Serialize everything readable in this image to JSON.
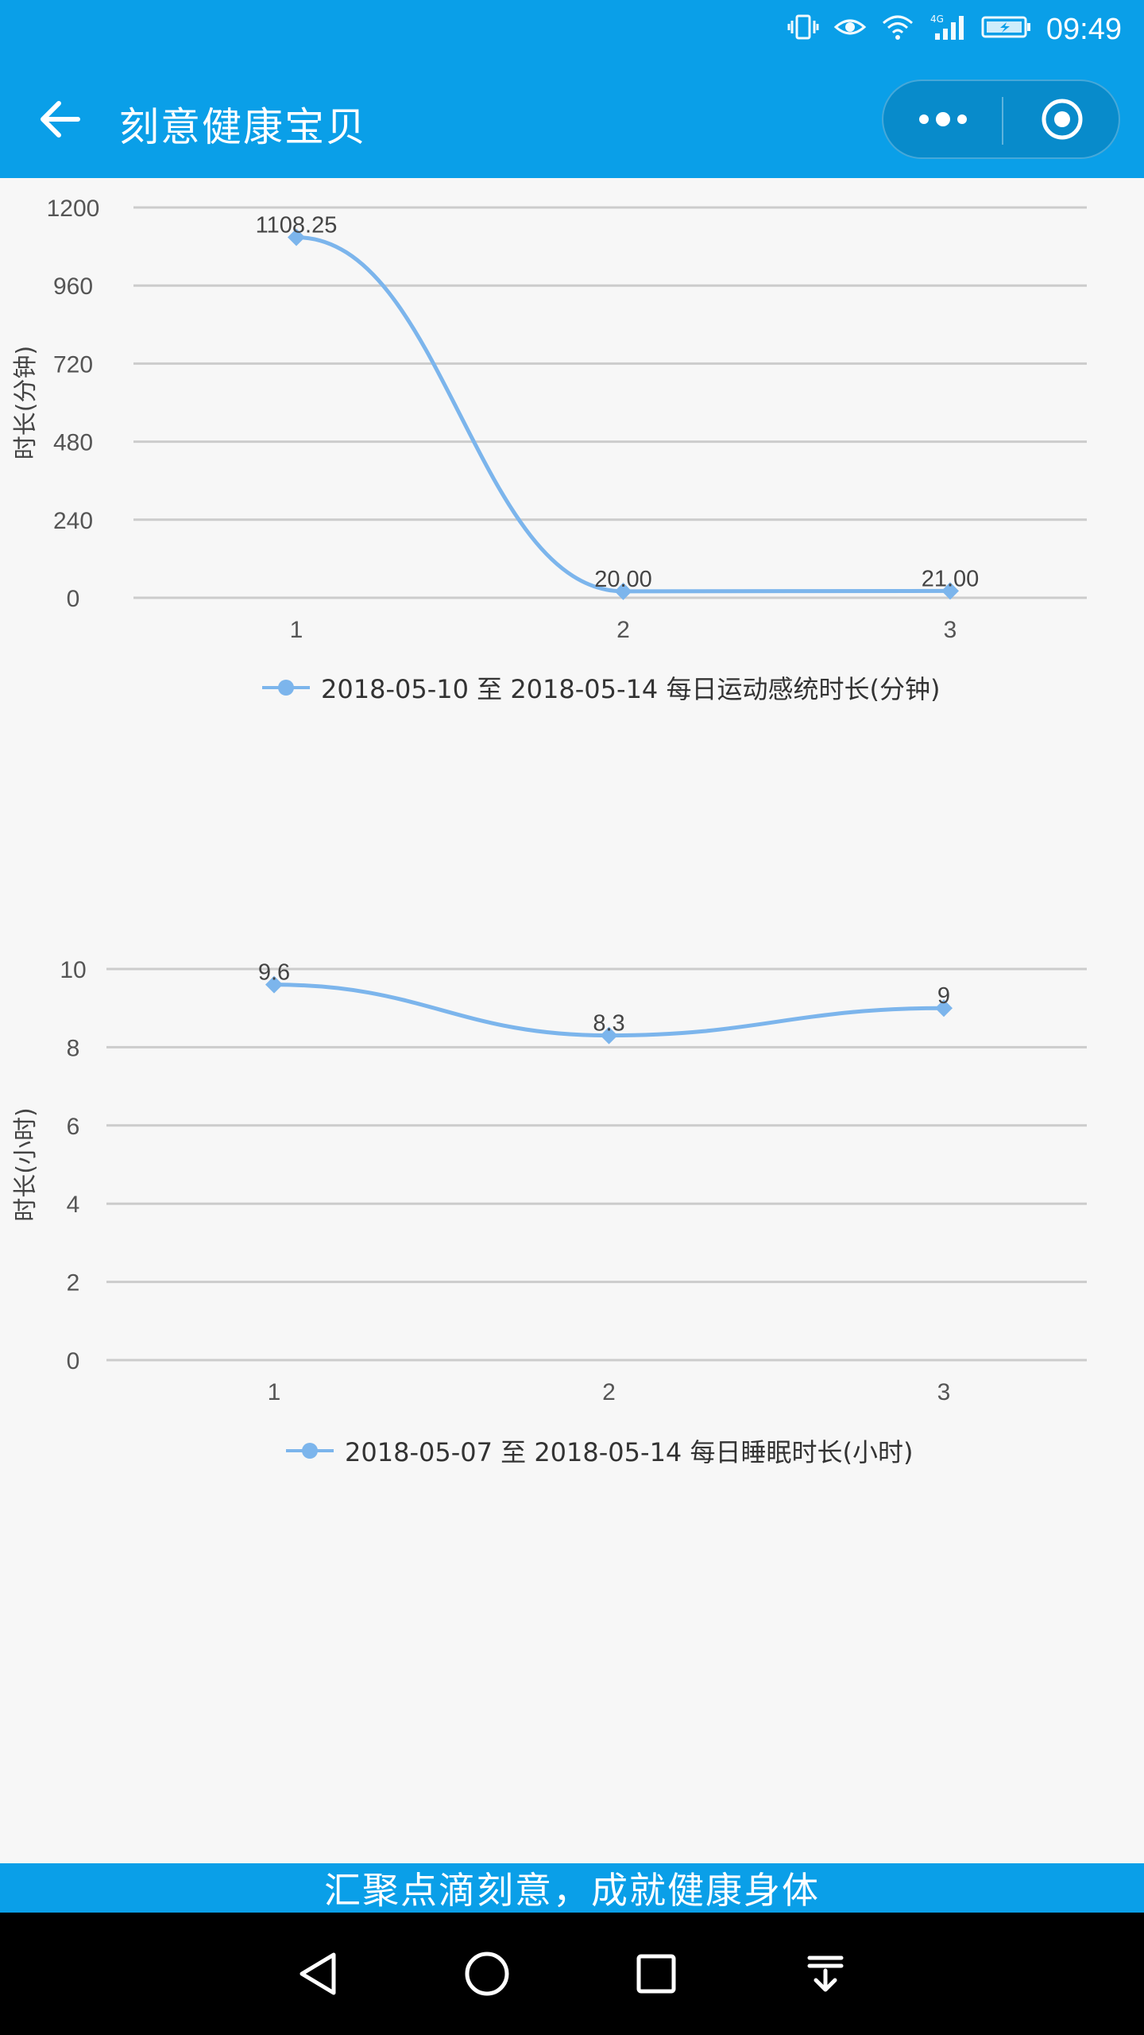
{
  "status_bar": {
    "time": "09:49",
    "icons": [
      "vibrate-icon",
      "eye-comfort-icon",
      "wifi-icon",
      "signal-4g-icon",
      "battery-charging-icon"
    ],
    "network_label": "4G"
  },
  "nav": {
    "title": "刻意健康宝贝",
    "back_icon": "arrow-left-icon",
    "more_icon": "more-dots-icon",
    "close_icon": "target-close-icon"
  },
  "colors": {
    "primary": "#0a9fe8",
    "series": "#7cb5ec",
    "grid": "#cccccc",
    "background": "#f7f7f7"
  },
  "chart_data": [
    {
      "type": "line",
      "x": [
        "1",
        "2",
        "3"
      ],
      "series": [
        {
          "name": "2018-05-10 至 2018-05-14 每日运动感统时长(分钟)",
          "values": [
            1108.25,
            20.0,
            21.0
          ]
        }
      ],
      "data_labels": [
        "1108.25",
        "20.00",
        "21.00"
      ],
      "ylabel": "时长(分钟)",
      "yticks": [
        "0",
        "240",
        "480",
        "720",
        "960",
        "1200"
      ],
      "ylim": [
        0,
        1200
      ],
      "grid": true,
      "legend_position": "bottom"
    },
    {
      "type": "line",
      "x": [
        "1",
        "2",
        "3"
      ],
      "series": [
        {
          "name": "2018-05-07 至 2018-05-14 每日睡眠时长(小时)",
          "values": [
            9.6,
            8.3,
            9
          ]
        }
      ],
      "data_labels": [
        "9.6",
        "8.3",
        "9"
      ],
      "ylabel": "时长(小时)",
      "yticks": [
        "0",
        "2",
        "4",
        "6",
        "8",
        "10"
      ],
      "ylim": [
        0,
        10
      ],
      "grid": true,
      "legend_position": "bottom"
    }
  ],
  "footer": {
    "slogan": "汇聚点滴刻意，成就健康身体"
  },
  "android_nav": {
    "buttons": [
      "back-triangle-icon",
      "home-circle-icon",
      "recents-square-icon",
      "notification-pulldown-icon"
    ]
  }
}
